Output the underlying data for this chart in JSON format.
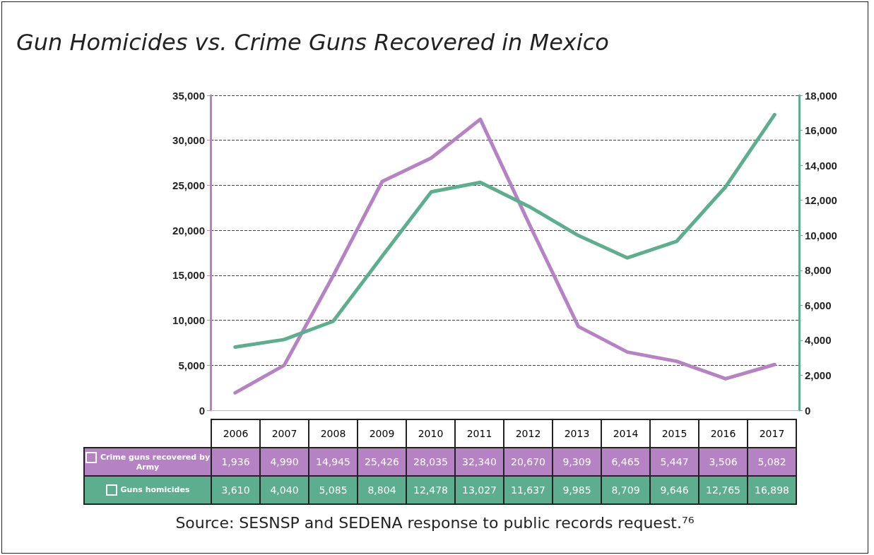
{
  "chart_data": {
    "type": "line",
    "title": "Gun Homicides vs. Crime Guns Recovered in Mexico",
    "categories": [
      "2006",
      "2007",
      "2008",
      "2009",
      "2010",
      "2011",
      "2012",
      "2013",
      "2014",
      "2015",
      "2016",
      "2017"
    ],
    "series": [
      {
        "name": "Crime guns recovered by Army",
        "color": "#b583c3",
        "values": [
          1936,
          4990,
          14945,
          25426,
          28035,
          32340,
          20670,
          9309,
          6465,
          5447,
          3506,
          5082
        ],
        "value_labels": [
          "1,936",
          "4,990",
          "14,945",
          "25,426",
          "28,035",
          "32,340",
          "20,670",
          "9,309",
          "6,465",
          "5,447",
          "3,506",
          "5,082"
        ]
      },
      {
        "name": "Guns homicides",
        "color": "#5cae8f",
        "axis": "y2",
        "values": [
          3610,
          4040,
          5085,
          8804,
          12478,
          13027,
          11637,
          9985,
          8709,
          9646,
          12765,
          16898
        ],
        "value_labels": [
          "3,610",
          "4,040",
          "5,085",
          "8,804",
          "12,478",
          "13,027",
          "11,637",
          "9,985",
          "8,709",
          "9,646",
          "12,765",
          "16,898"
        ]
      }
    ],
    "ylim": [
      0,
      35000
    ],
    "yticks": [
      0,
      {
        "value": 5000,
        "label": "5,000"
      },
      {
        "value": 10000,
        "label": "10,000"
      },
      {
        "value": 15000,
        "label": "15,000"
      },
      {
        "value": 20000,
        "label": "20,000"
      },
      {
        "value": 25000,
        "label": "25,000"
      },
      {
        "value": 30000,
        "label": "30,000"
      },
      {
        "value": 35000,
        "label": "35,000"
      }
    ],
    "y2lim": [
      0,
      18000
    ],
    "y2ticks": [
      0,
      {
        "value": 2000,
        "label": "2,000"
      },
      {
        "value": 4000,
        "label": "4,000"
      },
      {
        "value": 6000,
        "label": "6,000"
      },
      {
        "value": 8000,
        "label": "8,000"
      },
      {
        "value": 10000,
        "label": "10,000"
      },
      {
        "value": 12000,
        "label": "12,000"
      },
      {
        "value": 14000,
        "label": "14,000"
      },
      {
        "value": 16000,
        "label": "16,000"
      },
      {
        "value": 18000,
        "label": "18,000"
      }
    ],
    "grid": "y",
    "legend": "bottom left",
    "marker": "none",
    "line_style": "solid",
    "annotations": [
      "Source: SESNSP and SEDENA response to public records request.⁷⁶"
    ]
  }
}
